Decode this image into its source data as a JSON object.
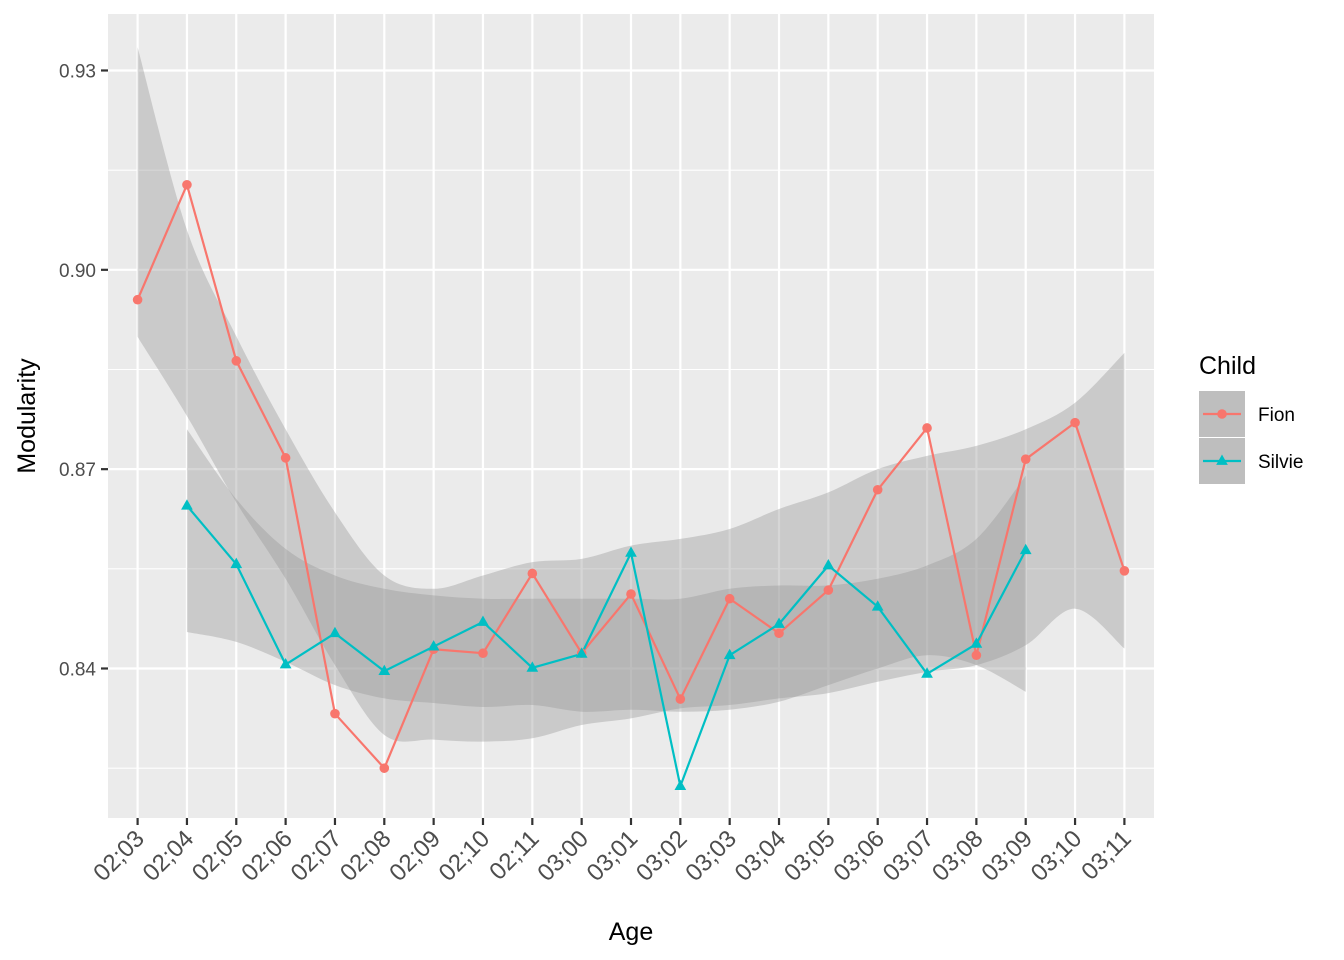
{
  "chart_data": {
    "type": "line",
    "xlabel": "Age",
    "ylabel": "Modularity",
    "categories": [
      "02;03",
      "02;04",
      "02;05",
      "02;06",
      "02;07",
      "02;08",
      "02;09",
      "02;10",
      "02;11",
      "03;00",
      "03;01",
      "03;02",
      "03;03",
      "03;04",
      "03;05",
      "03;06",
      "03;07",
      "03;08",
      "03;09",
      "03;10",
      "03;11"
    ],
    "ylim": [
      0.8175,
      0.9385
    ],
    "y_ticks": [
      0.84,
      0.87,
      0.9,
      0.93
    ],
    "y_tick_labels": [
      "0.84",
      "0.87",
      "0.90",
      "0.93"
    ],
    "grid": true,
    "legend": {
      "title": "Child",
      "position": "right"
    },
    "series": [
      {
        "name": "Fion",
        "color": "#F8766D",
        "marker": "circle",
        "values": [
          0.8955,
          0.9128,
          0.8863,
          0.8717,
          0.8332,
          0.825,
          0.8429,
          0.8423,
          0.8543,
          0.8423,
          0.8512,
          0.8354,
          0.8505,
          0.8453,
          0.8518,
          0.8669,
          0.8762,
          0.842,
          0.8715,
          0.877,
          0.8547
        ],
        "smooth_band": {
          "lower": [
            0.8899,
            0.878,
            0.865,
            0.8535,
            0.8405,
            0.83,
            0.8293,
            0.829,
            0.8295,
            0.8315,
            0.8325,
            0.834,
            0.8345,
            0.8355,
            0.8363,
            0.838,
            0.8395,
            0.8405,
            0.8435,
            0.849,
            0.843
          ],
          "upper": [
            0.9335,
            0.906,
            0.89,
            0.876,
            0.8635,
            0.854,
            0.852,
            0.854,
            0.856,
            0.8565,
            0.8585,
            0.8595,
            0.861,
            0.864,
            0.8665,
            0.87,
            0.872,
            0.8735,
            0.876,
            0.88,
            0.8875
          ]
        }
      },
      {
        "name": "Silvie",
        "color": "#00BFC4",
        "marker": "triangle",
        "values": [
          null,
          0.8645,
          0.8557,
          0.8406,
          0.8453,
          0.8396,
          0.8433,
          0.847,
          0.8401,
          0.8422,
          0.8574,
          0.8223,
          0.842,
          0.8467,
          0.8555,
          0.8493,
          0.8392,
          0.8437,
          0.8578,
          null,
          null
        ],
        "smooth_band": {
          "lower": [
            null,
            0.8455,
            0.844,
            0.841,
            0.8375,
            0.8355,
            0.8348,
            0.8342,
            0.8345,
            0.8335,
            0.8338,
            0.8335,
            0.8338,
            0.835,
            0.8375,
            0.84,
            0.842,
            0.8405,
            0.8365,
            null,
            null
          ],
          "upper": [
            null,
            0.876,
            0.8655,
            0.858,
            0.854,
            0.852,
            0.851,
            0.8505,
            0.8505,
            0.8505,
            0.8505,
            0.8505,
            0.852,
            0.8525,
            0.8525,
            0.8535,
            0.8555,
            0.8595,
            0.869,
            null,
            null
          ]
        }
      }
    ]
  }
}
